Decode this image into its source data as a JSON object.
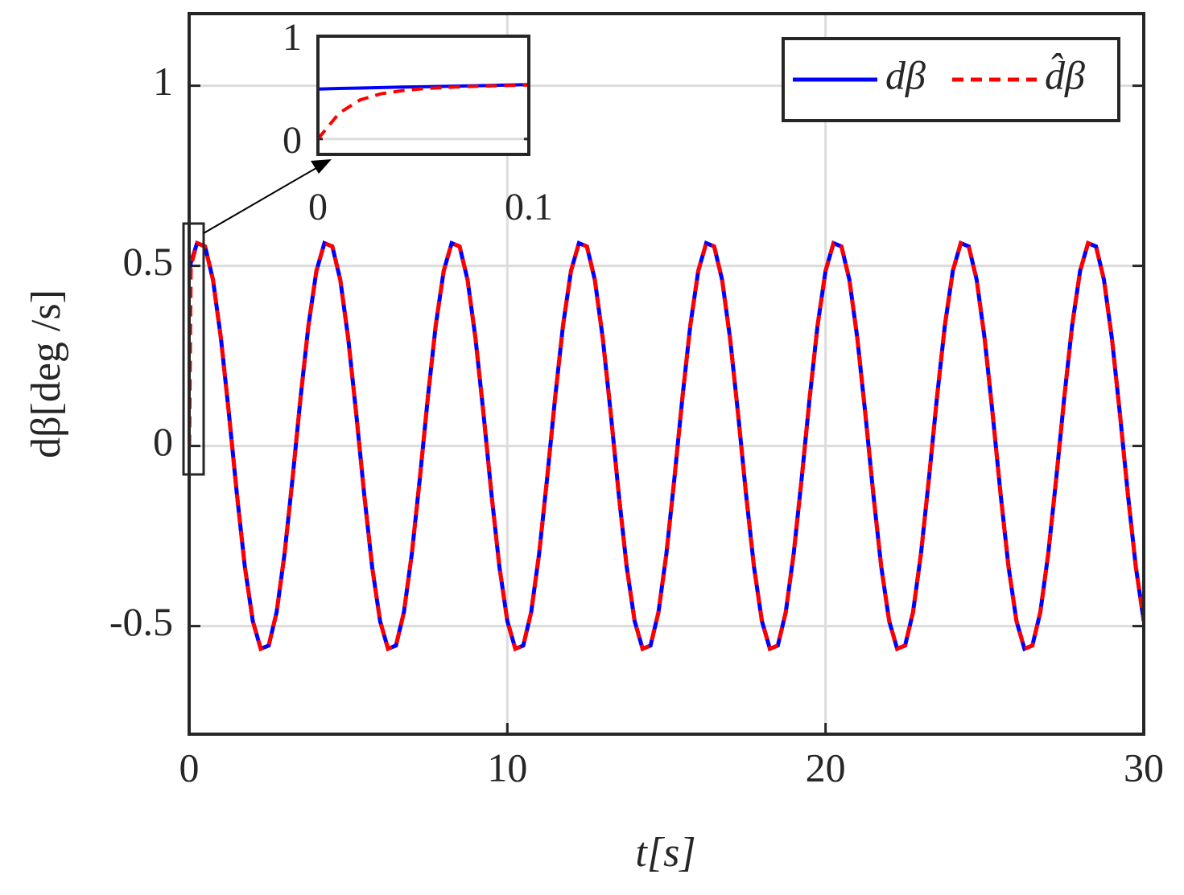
{
  "chart_data": [
    {
      "type": "line",
      "xlabel": "t[s]",
      "ylabel": "dβ[deg /s]",
      "xlim": [
        0,
        30
      ],
      "ylim": [
        -0.8,
        1.2
      ],
      "xticks": [
        0,
        10,
        20,
        30
      ],
      "yticks": [
        -0.5,
        0,
        0.5,
        1
      ],
      "grid": true,
      "legend": "upper right",
      "x": [
        0,
        0.05,
        0.25,
        0.5,
        0.75,
        1,
        1.25,
        1.5,
        1.75,
        2,
        2.25,
        2.5,
        2.75,
        3,
        3.25,
        3.5,
        3.75,
        4,
        4.25,
        4.5,
        4.75,
        5,
        5.25,
        5.5,
        5.75,
        6,
        6.25,
        6.5,
        6.75,
        7,
        7.25,
        7.5,
        7.75,
        8,
        8.25,
        8.5,
        8.75,
        9,
        9.25,
        9.5,
        9.75,
        10,
        10.25,
        10.5,
        10.75,
        11,
        11.25,
        11.5,
        11.75,
        12,
        12.25,
        12.5,
        12.75,
        13,
        13.25,
        13.5,
        13.75,
        14,
        14.25,
        14.5,
        14.75,
        15,
        15.25,
        15.5,
        15.75,
        16,
        16.25,
        16.5,
        16.75,
        17,
        17.25,
        17.5,
        17.75,
        18,
        18.25,
        18.5,
        18.75,
        19,
        19.25,
        19.5,
        19.75,
        20,
        20.25,
        20.5,
        20.75,
        21,
        21.25,
        21.5,
        21.75,
        22,
        22.25,
        22.5,
        22.75,
        23,
        23.25,
        23.5,
        23.75,
        24,
        24.25,
        24.5,
        24.75,
        25,
        25.25,
        25.5,
        25.75,
        26,
        26.25,
        26.5,
        26.75,
        27,
        27.25,
        27.5,
        27.75,
        28,
        28.25,
        28.5,
        28.75,
        29,
        29.25,
        29.5,
        29.75,
        30
      ],
      "series": [
        {
          "name": "dβ",
          "color": "#0000ff",
          "linestyle": "solid",
          "values": [
            0.486,
            0.508,
            0.563,
            0.554,
            0.461,
            0.298,
            0.09,
            -0.133,
            -0.335,
            -0.486,
            -0.563,
            -0.554,
            -0.461,
            -0.298,
            -0.09,
            0.133,
            0.335,
            0.486,
            0.563,
            0.554,
            0.461,
            0.298,
            0.09,
            -0.133,
            -0.335,
            -0.486,
            -0.563,
            -0.554,
            -0.461,
            -0.298,
            -0.09,
            0.133,
            0.335,
            0.486,
            0.563,
            0.554,
            0.461,
            0.298,
            0.09,
            -0.133,
            -0.335,
            -0.486,
            -0.563,
            -0.554,
            -0.461,
            -0.298,
            -0.09,
            0.133,
            0.335,
            0.486,
            0.563,
            0.554,
            0.461,
            0.298,
            0.09,
            -0.133,
            -0.335,
            -0.486,
            -0.563,
            -0.554,
            -0.461,
            -0.298,
            -0.09,
            0.133,
            0.335,
            0.486,
            0.563,
            0.554,
            0.461,
            0.298,
            0.09,
            -0.133,
            -0.335,
            -0.486,
            -0.563,
            -0.554,
            -0.461,
            -0.298,
            -0.09,
            0.133,
            0.335,
            0.486,
            0.563,
            0.554,
            0.461,
            0.298,
            0.09,
            -0.133,
            -0.335,
            -0.486,
            -0.563,
            -0.554,
            -0.461,
            -0.298,
            -0.09,
            0.133,
            0.335,
            0.486,
            0.563,
            0.554,
            0.461,
            0.298,
            0.09,
            -0.133,
            -0.335,
            -0.486,
            -0.563,
            -0.554,
            -0.461,
            -0.298,
            -0.09,
            0.133,
            0.335,
            0.486,
            0.563,
            0.554,
            0.461,
            0.298,
            0.09,
            -0.133,
            -0.335,
            -0.486
          ]
        },
        {
          "name": "d̂β",
          "color": "#ff0000",
          "linestyle": "dashed",
          "values": [
            0,
            0.5,
            0.563,
            0.554,
            0.461,
            0.298,
            0.09,
            -0.133,
            -0.335,
            -0.486,
            -0.563,
            -0.554,
            -0.461,
            -0.298,
            -0.09,
            0.133,
            0.335,
            0.486,
            0.563,
            0.554,
            0.461,
            0.298,
            0.09,
            -0.133,
            -0.335,
            -0.486,
            -0.563,
            -0.554,
            -0.461,
            -0.298,
            -0.09,
            0.133,
            0.335,
            0.486,
            0.563,
            0.554,
            0.461,
            0.298,
            0.09,
            -0.133,
            -0.335,
            -0.486,
            -0.563,
            -0.554,
            -0.461,
            -0.298,
            -0.09,
            0.133,
            0.335,
            0.486,
            0.563,
            0.554,
            0.461,
            0.298,
            0.09,
            -0.133,
            -0.335,
            -0.486,
            -0.563,
            -0.554,
            -0.461,
            -0.298,
            -0.09,
            0.133,
            0.335,
            0.486,
            0.563,
            0.554,
            0.461,
            0.298,
            0.09,
            -0.133,
            -0.335,
            -0.486,
            -0.563,
            -0.554,
            -0.461,
            -0.298,
            -0.09,
            0.133,
            0.335,
            0.486,
            0.563,
            0.554,
            0.461,
            0.298,
            0.09,
            -0.133,
            -0.335,
            -0.486,
            -0.563,
            -0.554,
            -0.461,
            -0.298,
            -0.09,
            0.133,
            0.335,
            0.486,
            0.563,
            0.554,
            0.461,
            0.298,
            0.09,
            -0.133,
            -0.335,
            -0.486,
            -0.563,
            -0.554,
            -0.461,
            -0.298,
            -0.09,
            0.133,
            0.335,
            0.486,
            0.563,
            0.554,
            0.461,
            0.298,
            0.09,
            -0.133,
            -0.335,
            -0.486
          ]
        }
      ]
    },
    {
      "type": "line",
      "xlim": [
        0,
        0.1
      ],
      "ylim": [
        -0.15,
        1
      ],
      "xticks": [
        0,
        0.1
      ],
      "yticks": [
        0,
        1
      ],
      "grid": true,
      "x": [
        0,
        0.01,
        0.02,
        0.03,
        0.04,
        0.05,
        0.06,
        0.07,
        0.08,
        0.09,
        0.1
      ],
      "series": [
        {
          "color": "#0000ff",
          "linestyle": "solid",
          "values": [
            0.486,
            0.491,
            0.495,
            0.5,
            0.505,
            0.508,
            0.512,
            0.516,
            0.52,
            0.525,
            0.529
          ]
        },
        {
          "color": "#ff0000",
          "linestyle": "dashed",
          "values": [
            0,
            0.25,
            0.38,
            0.44,
            0.47,
            0.49,
            0.5,
            0.51,
            0.515,
            0.52,
            0.525
          ]
        }
      ]
    }
  ]
}
